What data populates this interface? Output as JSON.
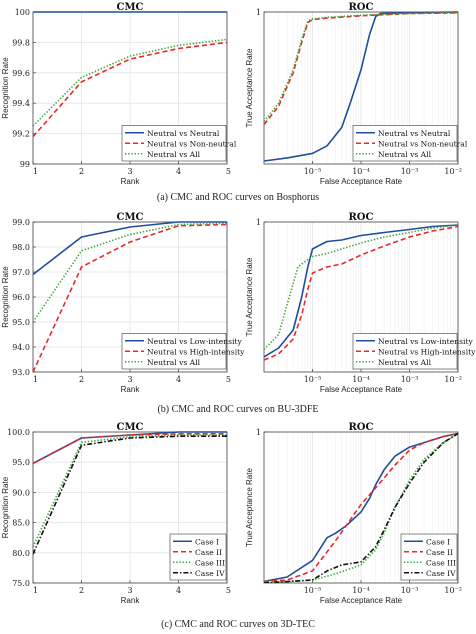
{
  "colors": {
    "series1": "#1f4e9c",
    "series2": "#e8292b",
    "series3": "#3aa63a",
    "series4": "#111111",
    "grid": "#e3e3e3",
    "axis": "#444444"
  },
  "captions": [
    "(a) CMC and ROC curves on Bosphorus",
    "(b) CMC and ROC curves on BU-3DFE",
    "(c) CMC and ROC curves on 3D-TEC"
  ],
  "chart_data": [
    {
      "type": "line",
      "title": "CMC",
      "xlabel": "Rank",
      "ylabel": "Recognition Rate",
      "xlim": [
        1,
        5
      ],
      "ylim": [
        99,
        100
      ],
      "xscale": "linear",
      "xticks": [
        1,
        2,
        3,
        4,
        5
      ],
      "xtick_labels": [
        "1",
        "2",
        "3",
        "4",
        "5"
      ],
      "yticks": [
        99,
        99.2,
        99.4,
        99.6,
        99.8,
        100
      ],
      "ytick_labels": [
        "99",
        "99.2",
        "99.4",
        "99.6",
        "99.8",
        "100"
      ],
      "grid": true,
      "legend": "bottom-right",
      "series": [
        {
          "name": "Neutral vs Neutral",
          "style": "solid",
          "color": "#1f4e9c",
          "x": [
            1,
            2,
            3,
            4,
            5
          ],
          "y": [
            100,
            100,
            100,
            100,
            100
          ]
        },
        {
          "name": "Neutral vs Non-neutral",
          "style": "dashed",
          "color": "#e8292b",
          "x": [
            1,
            2,
            3,
            4,
            5
          ],
          "y": [
            99.18,
            99.54,
            99.69,
            99.76,
            99.8
          ]
        },
        {
          "name": "Neutral vs All",
          "style": "dotted",
          "color": "#3aa63a",
          "x": [
            1,
            2,
            3,
            4,
            5
          ],
          "y": [
            99.25,
            99.57,
            99.71,
            99.78,
            99.82
          ]
        }
      ]
    },
    {
      "type": "line",
      "title": "ROC",
      "xlabel": "False Acceptance Rate",
      "ylabel": "True Acceptance Rate",
      "xlim": [
        1e-06,
        0.01
      ],
      "ylim": [
        0,
        1
      ],
      "xscale": "log",
      "xticks": [
        1e-05,
        0.0001,
        0.001,
        0.01
      ],
      "xtick_labels": [
        "10⁻⁵",
        "10⁻⁴",
        "10⁻³",
        "10⁻²"
      ],
      "yticks": [
        1
      ],
      "ytick_labels": [
        "1"
      ],
      "grid": true,
      "legend": "bottom-right",
      "series": [
        {
          "name": "Neutral vs Neutral",
          "style": "solid",
          "color": "#1f4e9c",
          "x": [
            1e-06,
            3e-06,
            1e-05,
            2e-05,
            4e-05,
            6e-05,
            0.0001,
            0.00015,
            0.0002,
            0.00025,
            0.001,
            0.01
          ],
          "y": [
            0.02,
            0.04,
            0.07,
            0.12,
            0.24,
            0.4,
            0.62,
            0.85,
            0.97,
            0.99,
            0.995,
            1
          ]
        },
        {
          "name": "Neutral vs Non-neutral",
          "style": "dashed",
          "color": "#e8292b",
          "x": [
            1e-06,
            2e-06,
            4e-06,
            6e-06,
            8e-06,
            1e-05,
            2e-05,
            0.0001,
            0.001,
            0.01
          ],
          "y": [
            0.26,
            0.38,
            0.6,
            0.8,
            0.93,
            0.95,
            0.96,
            0.975,
            0.99,
            0.995
          ]
        },
        {
          "name": "Neutral vs All",
          "style": "dotted",
          "color": "#3aa63a",
          "x": [
            1e-06,
            2e-06,
            4e-06,
            6e-06,
            8e-06,
            1e-05,
            2e-05,
            0.0001,
            0.001,
            0.01
          ],
          "y": [
            0.28,
            0.4,
            0.62,
            0.82,
            0.94,
            0.955,
            0.965,
            0.978,
            0.99,
            0.995
          ]
        }
      ]
    },
    {
      "type": "line",
      "title": "CMC",
      "xlabel": "Rank",
      "ylabel": "Recognition Rate",
      "xlim": [
        1,
        5
      ],
      "ylim": [
        93,
        99
      ],
      "xscale": "linear",
      "xticks": [
        1,
        2,
        3,
        4,
        5
      ],
      "xtick_labels": [
        "1",
        "2",
        "3",
        "4",
        "5"
      ],
      "yticks": [
        93,
        94,
        95,
        96,
        97,
        98,
        99
      ],
      "ytick_labels": [
        "93.0",
        "94.0",
        "95.0",
        "96.0",
        "97.0",
        "98.0",
        "99.0"
      ],
      "grid": true,
      "legend": "bottom-right",
      "series": [
        {
          "name": "Neutral vs Low-intensity",
          "style": "solid",
          "color": "#1f4e9c",
          "x": [
            1,
            2,
            3,
            4,
            5
          ],
          "y": [
            96.9,
            98.4,
            98.8,
            99.0,
            99.0
          ]
        },
        {
          "name": "Neutral vs High-intensity",
          "style": "dashed",
          "color": "#e8292b",
          "x": [
            1,
            2,
            3,
            4,
            5
          ],
          "y": [
            93.0,
            97.2,
            98.2,
            98.85,
            98.9
          ]
        },
        {
          "name": "Neutral vs All",
          "style": "dotted",
          "color": "#3aa63a",
          "x": [
            1,
            2,
            3,
            4,
            5
          ],
          "y": [
            95.0,
            97.85,
            98.5,
            98.9,
            98.95
          ]
        }
      ]
    },
    {
      "type": "line",
      "title": "ROC",
      "xlabel": "False Acceptance Rate",
      "ylabel": "True Acceptance Rate",
      "xlim": [
        1e-06,
        0.01
      ],
      "ylim": [
        0,
        1
      ],
      "xscale": "log",
      "xticks": [
        1e-05,
        0.0001,
        0.001,
        0.01
      ],
      "xtick_labels": [
        "10⁻⁵",
        "10⁻⁴",
        "10⁻³",
        "10⁻²"
      ],
      "yticks": [
        1
      ],
      "ytick_labels": [
        "1"
      ],
      "grid": true,
      "legend": "bottom-right",
      "series": [
        {
          "name": "Neutral vs Low-intensity",
          "style": "solid",
          "color": "#1f4e9c",
          "x": [
            1e-06,
            2e-06,
            4e-06,
            6e-06,
            8e-06,
            1e-05,
            1.5e-05,
            2e-05,
            4e-05,
            0.0001,
            0.0003,
            0.001,
            0.003,
            0.01
          ],
          "y": [
            0.1,
            0.16,
            0.28,
            0.5,
            0.7,
            0.82,
            0.85,
            0.87,
            0.88,
            0.91,
            0.93,
            0.95,
            0.97,
            0.98
          ]
        },
        {
          "name": "Neutral vs High-intensity",
          "style": "dashed",
          "color": "#e8292b",
          "x": [
            1e-06,
            2e-06,
            4e-06,
            6e-06,
            8e-06,
            1e-05,
            2e-05,
            4e-05,
            0.0001,
            0.0003,
            0.001,
            0.003,
            0.01
          ],
          "y": [
            0.08,
            0.12,
            0.22,
            0.38,
            0.55,
            0.66,
            0.7,
            0.72,
            0.78,
            0.84,
            0.9,
            0.94,
            0.97
          ]
        },
        {
          "name": "Neutral vs All",
          "style": "dotted",
          "color": "#3aa63a",
          "x": [
            1e-06,
            2e-06,
            3e-06,
            5e-06,
            8e-06,
            1e-05,
            2e-05,
            0.0001,
            0.0003,
            0.001,
            0.003,
            0.01
          ],
          "y": [
            0.15,
            0.25,
            0.45,
            0.7,
            0.75,
            0.77,
            0.79,
            0.86,
            0.9,
            0.93,
            0.96,
            0.98
          ]
        }
      ]
    },
    {
      "type": "line",
      "title": "CMC",
      "xlabel": "Rank",
      "ylabel": "Recognition Rate",
      "xlim": [
        1,
        5
      ],
      "ylim": [
        75,
        100
      ],
      "xscale": "linear",
      "xticks": [
        1,
        2,
        3,
        4,
        5
      ],
      "xtick_labels": [
        "1",
        "2",
        "3",
        "4",
        "5"
      ],
      "yticks": [
        75,
        80,
        85,
        90,
        95,
        100
      ],
      "ytick_labels": [
        "75.0",
        "80.0",
        "85.0",
        "90.0",
        "95.0",
        "100.0"
      ],
      "grid": true,
      "legend": "bottom-right",
      "series": [
        {
          "name": "Case I",
          "style": "solid",
          "color": "#1f4e9c",
          "x": [
            1,
            2,
            3,
            4,
            5
          ],
          "y": [
            94.8,
            99.0,
            99.5,
            100,
            100
          ]
        },
        {
          "name": "Case II",
          "style": "dashed",
          "color": "#e8292b",
          "x": [
            1,
            2,
            3,
            4,
            5
          ],
          "y": [
            94.8,
            99.0,
            99.5,
            99.7,
            99.7
          ]
        },
        {
          "name": "Case III",
          "style": "dotted",
          "color": "#3aa63a",
          "x": [
            1,
            2,
            3,
            4,
            5
          ],
          "y": [
            81.0,
            98.3,
            99.2,
            99.5,
            99.5
          ]
        },
        {
          "name": "Case IV",
          "style": "dashdot",
          "color": "#111111",
          "x": [
            1,
            2,
            3,
            4,
            5
          ],
          "y": [
            79.8,
            97.8,
            99.0,
            99.3,
            99.3
          ]
        }
      ]
    },
    {
      "type": "line",
      "title": "ROC",
      "xlabel": "False Acceptance Rate",
      "ylabel": "True Acceptance Rate",
      "xlim": [
        1e-06,
        0.01
      ],
      "ylim": [
        0,
        1
      ],
      "xscale": "log",
      "xticks": [
        1e-05,
        0.0001,
        0.001,
        0.01
      ],
      "xtick_labels": [
        "10⁻⁵",
        "10⁻⁴",
        "10⁻³",
        "10⁻²"
      ],
      "yticks": [
        1
      ],
      "ytick_labels": [
        "1"
      ],
      "grid": true,
      "legend": "bottom-right",
      "series": [
        {
          "name": "Case I",
          "style": "solid",
          "color": "#1f4e9c",
          "x": [
            1e-06,
            3e-06,
            1e-05,
            2e-05,
            3e-05,
            5e-05,
            0.0001,
            0.00015,
            0.0002,
            0.0003,
            0.0005,
            0.001,
            0.002,
            0.005,
            0.01
          ],
          "y": [
            0.01,
            0.04,
            0.15,
            0.3,
            0.33,
            0.38,
            0.47,
            0.56,
            0.65,
            0.75,
            0.84,
            0.9,
            0.93,
            0.97,
            0.99
          ]
        },
        {
          "name": "Case II",
          "style": "dashed",
          "color": "#e8292b",
          "x": [
            1e-06,
            3e-06,
            1e-05,
            3e-05,
            0.0001,
            0.0002,
            0.0005,
            0.001,
            0.002,
            0.005,
            0.01
          ],
          "y": [
            0.01,
            0.02,
            0.08,
            0.28,
            0.52,
            0.63,
            0.78,
            0.88,
            0.93,
            0.97,
            0.99
          ]
        },
        {
          "name": "Case III",
          "style": "dotted",
          "color": "#3aa63a",
          "x": [
            1e-06,
            1e-05,
            3e-05,
            0.0001,
            0.0002,
            0.0003,
            0.0005,
            0.001,
            0.002,
            0.005,
            0.01
          ],
          "y": [
            0.0,
            0.02,
            0.06,
            0.12,
            0.22,
            0.33,
            0.5,
            0.68,
            0.82,
            0.93,
            0.99
          ]
        },
        {
          "name": "Case IV",
          "style": "dashdot",
          "color": "#111111",
          "x": [
            1e-06,
            1e-05,
            2e-05,
            4e-05,
            0.0001,
            0.0002,
            0.0003,
            0.0005,
            0.001,
            0.002,
            0.005,
            0.01
          ],
          "y": [
            0.0,
            0.02,
            0.08,
            0.12,
            0.14,
            0.24,
            0.35,
            0.5,
            0.66,
            0.8,
            0.93,
            0.99
          ]
        }
      ]
    }
  ]
}
